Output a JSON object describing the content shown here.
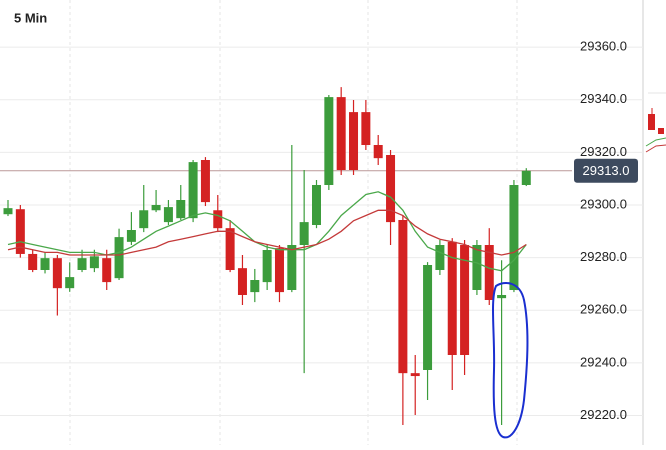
{
  "chart_data": {
    "type": "candlestick",
    "title": "5 Min",
    "ylim": [
      29208.8,
      29377.9
    ],
    "yticks": [
      {
        "value": 29220,
        "label": "29220.0"
      },
      {
        "value": 29240,
        "label": "29240.0"
      },
      {
        "value": 29260,
        "label": "29260.0"
      },
      {
        "value": 29280,
        "label": "29280.0"
      },
      {
        "value": 29300,
        "label": "29300.0"
      },
      {
        "value": 29320,
        "label": "29320.0"
      },
      {
        "value": 29340,
        "label": "29340.0"
      },
      {
        "value": 29360,
        "label": "29360.0"
      }
    ],
    "grid": true,
    "up_color": "#3c9c3c",
    "down_color": "#d42222",
    "last_price": {
      "value": 29313,
      "label": "29313.0"
    },
    "open": [
      29296.5,
      29298.4,
      29281.4,
      29275.3,
      29279.8,
      29268.4,
      29275.3,
      29276,
      29279.8,
      29272.2,
      29286,
      29291.2,
      29298,
      29293.5,
      29295,
      29295,
      29317.1,
      29298,
      29291.2,
      29276,
      29266.9,
      29270.7,
      29283.6,
      29267.7,
      29284.8,
      29292.4,
      29307.6,
      29341,
      29335.3,
      29335.3,
      29322.8,
      29319,
      29294.3,
      29236.1,
      29237.3,
      29275.3,
      29286,
      29284.8,
      29267.7,
      29284.8,
      29264.6,
      29267.7,
      29307.6
    ],
    "high": [
      29301.9,
      29300,
      29282.9,
      29282,
      29281,
      29278.2,
      29283,
      29283,
      29283,
      29291,
      29297.3,
      29307.6,
      29305.7,
      29301.9,
      29307.6,
      29317.1,
      29318.2,
      29303.8,
      29294.3,
      29281,
      29275.7,
      29284.8,
      29284.8,
      29322.8,
      29313.3,
      29309.5,
      29341.8,
      29344.8,
      29339.9,
      29339.9,
      29326.6,
      29320.9,
      29296.2,
      29243,
      29278.3,
      29286.7,
      29287.4,
      29286.7,
      29286.7,
      29291.2,
      29279,
      29309.5,
      29314
    ],
    "low": [
      29295.8,
      29280,
      29274.5,
      29274,
      29258,
      29267,
      29274.5,
      29274.5,
      29267.7,
      29271.5,
      29284.8,
      29289.7,
      29297.3,
      29292.4,
      29294.3,
      29293.5,
      29299.6,
      29289.7,
      29274.5,
      29262,
      29263.1,
      29267.7,
      29263.1,
      29266.9,
      29236.1,
      29291.2,
      29305.7,
      29311.4,
      29311.4,
      29320.9,
      29315.2,
      29284.8,
      29216.4,
      29220.2,
      29225.9,
      29273.4,
      29229.7,
      29235.4,
      29265.8,
      29262,
      29216.4,
      29266.9,
      29307.2
    ],
    "close": [
      29298.8,
      29281.4,
      29275.3,
      29279.8,
      29268.4,
      29272.6,
      29279.8,
      29280.5,
      29270.7,
      29287.8,
      29290.5,
      29298,
      29300,
      29299.2,
      29301.9,
      29316.3,
      29301.1,
      29291.2,
      29275.3,
      29265.8,
      29271.5,
      29282.9,
      29266.9,
      29284.8,
      29293.5,
      29307.6,
      29341,
      29313.3,
      29313.3,
      29322.8,
      29317.8,
      29293.5,
      29236.1,
      29235,
      29277.2,
      29284.8,
      29243,
      29243,
      29284.8,
      29263.9,
      29265.8,
      29307.6,
      29313
    ],
    "overlays": [
      {
        "color": "#4aa84a",
        "values": [
          29285,
          29286,
          29285,
          29284,
          29283,
          29282,
          29282,
          29282,
          29281,
          29282,
          29284,
          29287,
          29290,
          29292,
          29294,
          29296,
          29297,
          29296,
          29294,
          29290,
          29286,
          29284,
          29283,
          29283,
          29283,
          29285,
          29290,
          29296,
          29300,
          29304,
          29305,
          29303,
          29298,
          29290,
          29284,
          29282,
          29280,
          29279,
          29278,
          29276,
          29275,
          29279,
          29285
        ]
      },
      {
        "color": "#c43a3a",
        "values": [
          29283,
          29284,
          29283,
          29282,
          29282,
          29281,
          29281,
          29281,
          29281,
          29281,
          29282,
          29283,
          29284,
          29286,
          29287,
          29288,
          29289,
          29290,
          29290,
          29288,
          29286,
          29285,
          29284,
          29283,
          29284,
          29285,
          29287,
          29290,
          29294,
          29296,
          29298,
          29298,
          29296,
          29292,
          29289,
          29287,
          29286,
          29285,
          29283,
          29282,
          29281,
          29282,
          29285
        ]
      }
    ]
  }
}
